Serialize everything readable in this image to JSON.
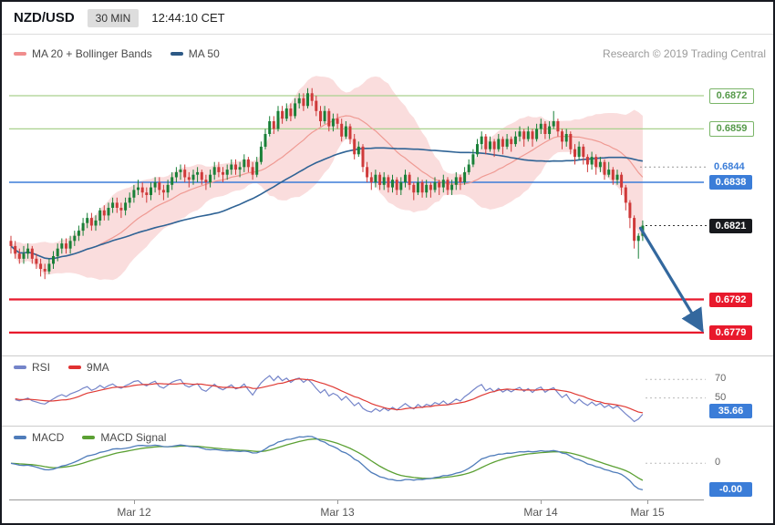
{
  "header": {
    "symbol": "NZD/USD",
    "timeframe": "30 MIN",
    "time": "12:44:10 CET"
  },
  "watermark": "Research © 2019 Trading Central",
  "main_legend": [
    {
      "label": "MA 20 + Bollinger Bands",
      "color": "#f08d8d"
    },
    {
      "label": "MA 50",
      "color": "#2d5986"
    }
  ],
  "rsi_legend": [
    {
      "label": "RSI",
      "color": "#7484c9"
    },
    {
      "label": "9MA",
      "color": "#e03131"
    }
  ],
  "macd_legend": [
    {
      "label": "MACD",
      "color": "#4f7cba"
    },
    {
      "label": "MACD Signal",
      "color": "#5ba033"
    }
  ],
  "colors": {
    "band_fill": "#f6bcbc",
    "ma20": "#ef9a93",
    "ma50": "#2f6395",
    "candle_up": "#1a8038",
    "candle_down": "#cf3a3a",
    "resistance": "#a9d18e",
    "pivot": "#3b7dd8",
    "support": "#e8192c",
    "rsi": "#7484c9",
    "rsi_ma": "#e03a34",
    "macd": "#4f7cba",
    "macd_signal": "#5ba033",
    "arrow": "#33689e"
  },
  "chart_data": {
    "type": "candlestick",
    "title": "NZD/USD 30 MIN",
    "x_unit": "30-minute candles",
    "ylim": [
      0.677,
      0.6896
    ],
    "overlays": [
      {
        "name": "MA 20 + Bollinger Bands",
        "period": 20,
        "bands_stddev": 2
      },
      {
        "name": "MA 50",
        "period": 50
      }
    ],
    "x_ticks": [
      {
        "label": "Mar 12",
        "slot": 29
      },
      {
        "label": "Mar 13",
        "slot": 77
      },
      {
        "label": "Mar 14",
        "slot": 125
      },
      {
        "label": "Mar 15",
        "slot": 150
      }
    ],
    "levels": [
      {
        "price": 0.6872,
        "label": "0.6872",
        "style": "resistance"
      },
      {
        "price": 0.6859,
        "label": "0.6859",
        "style": "resistance"
      },
      {
        "price": 0.6844,
        "label": "0.6844",
        "style": "ma-label"
      },
      {
        "price": 0.6838,
        "label": "0.6838",
        "style": "pivot"
      },
      {
        "price": 0.6821,
        "label": "0.6821",
        "style": "last"
      },
      {
        "price": 0.6792,
        "label": "0.6792",
        "style": "support"
      },
      {
        "price": 0.6779,
        "label": "0.6779",
        "style": "support"
      }
    ],
    "projection_arrow": {
      "from_slot": 148.5,
      "from_price": 0.682,
      "to_slot": 163,
      "to_price": 0.678,
      "direction": "down"
    },
    "candles": [
      [
        0.6815,
        0.6817,
        0.681,
        0.6813
      ],
      [
        0.6813,
        0.6815,
        0.6808,
        0.681
      ],
      [
        0.681,
        0.6812,
        0.6806,
        0.6808
      ],
      [
        0.6808,
        0.6813,
        0.6806,
        0.681
      ],
      [
        0.681,
        0.6814,
        0.6808,
        0.6812
      ],
      [
        0.6812,
        0.6813,
        0.6806,
        0.6808
      ],
      [
        0.6808,
        0.681,
        0.6804,
        0.6806
      ],
      [
        0.6806,
        0.6808,
        0.6801,
        0.6804
      ],
      [
        0.6804,
        0.6806,
        0.68,
        0.6803
      ],
      [
        0.6803,
        0.6808,
        0.6802,
        0.6806
      ],
      [
        0.6806,
        0.6811,
        0.6804,
        0.6809
      ],
      [
        0.6809,
        0.6814,
        0.6807,
        0.6812
      ],
      [
        0.6812,
        0.6816,
        0.681,
        0.6814
      ],
      [
        0.6814,
        0.6816,
        0.681,
        0.6812
      ],
      [
        0.6812,
        0.6817,
        0.681,
        0.6815
      ],
      [
        0.6815,
        0.6819,
        0.6813,
        0.6817
      ],
      [
        0.6817,
        0.6821,
        0.6815,
        0.6819
      ],
      [
        0.6819,
        0.6824,
        0.6817,
        0.6822
      ],
      [
        0.6822,
        0.6826,
        0.682,
        0.6824
      ],
      [
        0.6824,
        0.6826,
        0.6819,
        0.6821
      ],
      [
        0.6821,
        0.6825,
        0.6819,
        0.6823
      ],
      [
        0.6823,
        0.6828,
        0.6821,
        0.6827
      ],
      [
        0.6827,
        0.6829,
        0.6823,
        0.6825
      ],
      [
        0.6825,
        0.683,
        0.6823,
        0.6828
      ],
      [
        0.6828,
        0.6832,
        0.6826,
        0.683
      ],
      [
        0.683,
        0.6832,
        0.6826,
        0.6828
      ],
      [
        0.6828,
        0.683,
        0.6824,
        0.6827
      ],
      [
        0.6827,
        0.6832,
        0.6825,
        0.683
      ],
      [
        0.683,
        0.6834,
        0.6828,
        0.6832
      ],
      [
        0.6832,
        0.6837,
        0.683,
        0.6835
      ],
      [
        0.6835,
        0.6839,
        0.6833,
        0.6836
      ],
      [
        0.6836,
        0.6838,
        0.6832,
        0.6834
      ],
      [
        0.6834,
        0.6836,
        0.683,
        0.6833
      ],
      [
        0.6833,
        0.6838,
        0.6831,
        0.6836
      ],
      [
        0.6836,
        0.684,
        0.6834,
        0.6838
      ],
      [
        0.6838,
        0.684,
        0.6833,
        0.6835
      ],
      [
        0.6835,
        0.6837,
        0.6831,
        0.6834
      ],
      [
        0.6834,
        0.6839,
        0.6832,
        0.6837
      ],
      [
        0.6837,
        0.6842,
        0.6835,
        0.684
      ],
      [
        0.684,
        0.6844,
        0.6838,
        0.6842
      ],
      [
        0.6842,
        0.6845,
        0.6839,
        0.6843
      ],
      [
        0.6843,
        0.6845,
        0.6838,
        0.684
      ],
      [
        0.684,
        0.6842,
        0.6836,
        0.6839
      ],
      [
        0.6839,
        0.6843,
        0.6837,
        0.6841
      ],
      [
        0.6841,
        0.6844,
        0.6838,
        0.6842
      ],
      [
        0.6842,
        0.6843,
        0.6837,
        0.6839
      ],
      [
        0.6839,
        0.6841,
        0.6835,
        0.6838
      ],
      [
        0.6838,
        0.6843,
        0.6836,
        0.6841
      ],
      [
        0.6841,
        0.6846,
        0.6839,
        0.6844
      ],
      [
        0.6844,
        0.6846,
        0.684,
        0.6842
      ],
      [
        0.6842,
        0.6844,
        0.6838,
        0.6841
      ],
      [
        0.6841,
        0.6845,
        0.6839,
        0.6843
      ],
      [
        0.6843,
        0.6847,
        0.6841,
        0.6845
      ],
      [
        0.6845,
        0.6847,
        0.6841,
        0.6843
      ],
      [
        0.6843,
        0.6846,
        0.684,
        0.6844
      ],
      [
        0.6844,
        0.6849,
        0.6842,
        0.6847
      ],
      [
        0.6847,
        0.6848,
        0.6842,
        0.6844
      ],
      [
        0.6844,
        0.6846,
        0.6839,
        0.6841
      ],
      [
        0.6841,
        0.6848,
        0.684,
        0.6846
      ],
      [
        0.6846,
        0.6854,
        0.6845,
        0.6852
      ],
      [
        0.6852,
        0.6859,
        0.6851,
        0.6857
      ],
      [
        0.6857,
        0.6864,
        0.6856,
        0.6862
      ],
      [
        0.6862,
        0.6864,
        0.6857,
        0.6859
      ],
      [
        0.6859,
        0.6868,
        0.6858,
        0.6866
      ],
      [
        0.6866,
        0.6868,
        0.6861,
        0.6863
      ],
      [
        0.6863,
        0.6869,
        0.6862,
        0.6867
      ],
      [
        0.6867,
        0.6869,
        0.6862,
        0.6864
      ],
      [
        0.6864,
        0.6871,
        0.6863,
        0.6869
      ],
      [
        0.6869,
        0.6873,
        0.6867,
        0.6871
      ],
      [
        0.6871,
        0.6873,
        0.6866,
        0.6868
      ],
      [
        0.6868,
        0.6875,
        0.6867,
        0.6873
      ],
      [
        0.6873,
        0.6875,
        0.6868,
        0.687
      ],
      [
        0.687,
        0.6872,
        0.6864,
        0.6866
      ],
      [
        0.6866,
        0.6868,
        0.686,
        0.6862
      ],
      [
        0.6862,
        0.6868,
        0.6861,
        0.6866
      ],
      [
        0.6866,
        0.6867,
        0.6858,
        0.686
      ],
      [
        0.686,
        0.6865,
        0.6858,
        0.6863
      ],
      [
        0.6863,
        0.6865,
        0.6859,
        0.6861
      ],
      [
        0.6861,
        0.6863,
        0.6854,
        0.6856
      ],
      [
        0.6856,
        0.6862,
        0.6855,
        0.686
      ],
      [
        0.686,
        0.6861,
        0.6853,
        0.6855
      ],
      [
        0.6855,
        0.6857,
        0.6847,
        0.6849
      ],
      [
        0.6849,
        0.6854,
        0.6848,
        0.6852
      ],
      [
        0.6852,
        0.6853,
        0.6842,
        0.6844
      ],
      [
        0.6844,
        0.6846,
        0.6838,
        0.684
      ],
      [
        0.684,
        0.6842,
        0.6835,
        0.6838
      ],
      [
        0.6838,
        0.6843,
        0.6836,
        0.6841
      ],
      [
        0.6841,
        0.6842,
        0.6835,
        0.6837
      ],
      [
        0.6837,
        0.6842,
        0.6835,
        0.684
      ],
      [
        0.684,
        0.6841,
        0.6834,
        0.6836
      ],
      [
        0.6836,
        0.6841,
        0.6834,
        0.6839
      ],
      [
        0.6839,
        0.684,
        0.6833,
        0.6835
      ],
      [
        0.6835,
        0.684,
        0.6833,
        0.6838
      ],
      [
        0.6838,
        0.6843,
        0.6836,
        0.6841
      ],
      [
        0.6841,
        0.6842,
        0.6835,
        0.6837
      ],
      [
        0.6837,
        0.6838,
        0.6831,
        0.6834
      ],
      [
        0.6834,
        0.684,
        0.6833,
        0.6838
      ],
      [
        0.6838,
        0.6839,
        0.6832,
        0.6834
      ],
      [
        0.6834,
        0.6839,
        0.6832,
        0.6837
      ],
      [
        0.6837,
        0.6838,
        0.6832,
        0.6835
      ],
      [
        0.6835,
        0.684,
        0.6834,
        0.6838
      ],
      [
        0.6838,
        0.6839,
        0.6833,
        0.6836
      ],
      [
        0.6836,
        0.6841,
        0.6834,
        0.6839
      ],
      [
        0.6839,
        0.684,
        0.6833,
        0.6835
      ],
      [
        0.6835,
        0.6839,
        0.6833,
        0.6837
      ],
      [
        0.6837,
        0.6842,
        0.6835,
        0.684
      ],
      [
        0.684,
        0.6841,
        0.6835,
        0.6838
      ],
      [
        0.6838,
        0.6844,
        0.6837,
        0.6842
      ],
      [
        0.6842,
        0.6847,
        0.6841,
        0.6845
      ],
      [
        0.6845,
        0.6851,
        0.6844,
        0.6849
      ],
      [
        0.6849,
        0.6855,
        0.6848,
        0.6853
      ],
      [
        0.6853,
        0.6858,
        0.6851,
        0.6856
      ],
      [
        0.6856,
        0.6857,
        0.6849,
        0.6851
      ],
      [
        0.6851,
        0.6856,
        0.685,
        0.6854
      ],
      [
        0.6854,
        0.6855,
        0.6848,
        0.6851
      ],
      [
        0.6851,
        0.6857,
        0.685,
        0.6855
      ],
      [
        0.6855,
        0.6856,
        0.6849,
        0.6852
      ],
      [
        0.6852,
        0.6857,
        0.6851,
        0.6855
      ],
      [
        0.6855,
        0.6856,
        0.685,
        0.6853
      ],
      [
        0.6853,
        0.6858,
        0.6852,
        0.6856
      ],
      [
        0.6856,
        0.686,
        0.6854,
        0.6858
      ],
      [
        0.6858,
        0.6859,
        0.6852,
        0.6855
      ],
      [
        0.6855,
        0.686,
        0.6854,
        0.6858
      ],
      [
        0.6858,
        0.6859,
        0.6852,
        0.6855
      ],
      [
        0.6855,
        0.6861,
        0.6854,
        0.6859
      ],
      [
        0.6859,
        0.6863,
        0.6857,
        0.6861
      ],
      [
        0.6861,
        0.6862,
        0.6855,
        0.6857
      ],
      [
        0.6857,
        0.6862,
        0.6855,
        0.686
      ],
      [
        0.686,
        0.6866,
        0.6859,
        0.6862
      ],
      [
        0.6862,
        0.6863,
        0.6856,
        0.6858
      ],
      [
        0.6858,
        0.6859,
        0.6851,
        0.6854
      ],
      [
        0.6854,
        0.6859,
        0.6852,
        0.6857
      ],
      [
        0.6857,
        0.6858,
        0.6849,
        0.6851
      ],
      [
        0.6851,
        0.6853,
        0.6845,
        0.6848
      ],
      [
        0.6848,
        0.6854,
        0.6847,
        0.6852
      ],
      [
        0.6852,
        0.6853,
        0.6845,
        0.6848
      ],
      [
        0.6848,
        0.6849,
        0.6842,
        0.6845
      ],
      [
        0.6845,
        0.685,
        0.6843,
        0.6848
      ],
      [
        0.6848,
        0.6849,
        0.6841,
        0.6844
      ],
      [
        0.6844,
        0.6848,
        0.6842,
        0.6846
      ],
      [
        0.6846,
        0.6847,
        0.6839,
        0.6841
      ],
      [
        0.6841,
        0.6846,
        0.684,
        0.6843
      ],
      [
        0.6843,
        0.6844,
        0.6837,
        0.6839
      ],
      [
        0.6839,
        0.6843,
        0.6837,
        0.6841
      ],
      [
        0.6841,
        0.6842,
        0.6833,
        0.6836
      ],
      [
        0.6836,
        0.6837,
        0.6827,
        0.683
      ],
      [
        0.683,
        0.6831,
        0.682,
        0.6824
      ],
      [
        0.6824,
        0.6825,
        0.6812,
        0.6815
      ],
      [
        0.6815,
        0.6818,
        0.6808,
        0.6817
      ],
      [
        0.6817,
        0.6823,
        0.6815,
        0.6821
      ]
    ],
    "sub_charts": [
      {
        "name": "RSI",
        "type": "line",
        "series": [
          {
            "name": "RSI",
            "period": 14
          },
          {
            "name": "9MA",
            "period": 9
          }
        ],
        "range": [
          20,
          95
        ],
        "gridlines": [
          {
            "value": 70,
            "label": "70"
          },
          {
            "value": 50,
            "label": "50"
          }
        ],
        "last": {
          "value": 35.66,
          "label": "35.66"
        }
      },
      {
        "name": "MACD",
        "type": "line",
        "series": [
          {
            "name": "MACD",
            "fast": 12,
            "slow": 26
          },
          {
            "name": "MACD Signal",
            "period": 9
          }
        ],
        "gridlines": [
          {
            "value": 0,
            "label": "0"
          }
        ],
        "last_label": "-0.00"
      }
    ]
  }
}
